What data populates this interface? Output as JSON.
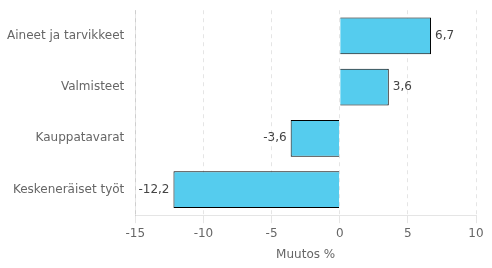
{
  "chart_data": {
    "type": "bar",
    "orientation": "horizontal",
    "categories": [
      "Keskeneräiset työt",
      "Kauppatavarat",
      "Valmisteet",
      "Aineet ja tarvikkeet"
    ],
    "values": [
      -12.2,
      -3.6,
      3.6,
      6.7
    ],
    "value_labels": [
      "-12,2",
      "-3,6",
      "3,6",
      "6,7"
    ],
    "data_labels": true,
    "color": "#55CCEE",
    "xlabel": "Muutos %",
    "xlim": [
      -15,
      10
    ],
    "xticks": [
      -15,
      -10,
      -5,
      0,
      5,
      10
    ],
    "grid": true
  }
}
